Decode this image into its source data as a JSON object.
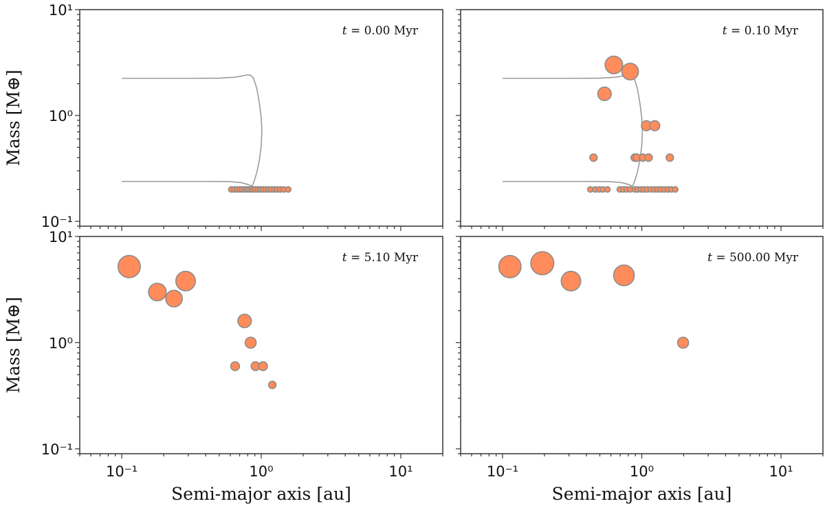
{
  "chart_data": {
    "type": "scatter",
    "layout": "2x2 grid, shared axes",
    "x_scale": "log",
    "y_scale": "log",
    "xlim": [
      0.05,
      20
    ],
    "ylim": [
      0.09,
      10
    ],
    "xlabel": "Semi-major axis [au]",
    "ylabel": "Mass [M⊕]",
    "xtick_labels": [
      "10⁻¹",
      "10⁰",
      "10¹"
    ],
    "xtick_values": [
      0.1,
      1,
      10
    ],
    "ytick_labels": [
      "10⁻¹",
      "10⁰",
      "10¹"
    ],
    "ytick_values": [
      0.1,
      1,
      10
    ],
    "grid": false,
    "colors": {
      "marker_fill": "#FF8C5A",
      "marker_edge": "#8C8C8C",
      "curve": "#9A9A9A",
      "frame": "#333333"
    },
    "marker_size_encodes": "mass",
    "curve": {
      "a": [
        0.1,
        0.3,
        0.5,
        0.65,
        0.75,
        0.8,
        0.84,
        0.88,
        0.93,
        0.97,
        1.0,
        1.01,
        1.0,
        0.97,
        0.93,
        0.89,
        0.86,
        0.8,
        0.72,
        0.6,
        0.4,
        0.1
      ],
      "m": [
        2.24,
        2.24,
        2.25,
        2.3,
        2.38,
        2.42,
        2.4,
        2.25,
        1.8,
        1.3,
        0.95,
        0.72,
        0.52,
        0.38,
        0.29,
        0.24,
        0.215,
        0.223,
        0.232,
        0.237,
        0.238,
        0.238
      ]
    },
    "panels": [
      {
        "time_prefix": "t",
        "time_label": " = 0.00 Myr",
        "show_curve": true,
        "points": {
          "a": [
            0.61,
            0.64,
            0.67,
            0.7,
            0.73,
            0.76,
            0.79,
            0.82,
            0.85,
            0.88,
            0.91,
            0.95,
            0.99,
            1.03,
            1.08,
            1.13,
            1.18,
            1.24,
            1.3,
            1.37,
            1.45,
            1.56
          ],
          "m": [
            0.2,
            0.2,
            0.2,
            0.2,
            0.2,
            0.2,
            0.2,
            0.2,
            0.2,
            0.2,
            0.2,
            0.2,
            0.2,
            0.2,
            0.2,
            0.2,
            0.2,
            0.2,
            0.2,
            0.2,
            0.2,
            0.2
          ]
        }
      },
      {
        "time_prefix": "t",
        "time_label": " = 0.10 Myr",
        "show_curve": true,
        "points": {
          "a": [
            0.63,
            0.825,
            0.54,
            1.08,
            1.24,
            0.45,
            0.89,
            0.92,
            1.02,
            1.12,
            1.59,
            0.427,
            0.463,
            0.495,
            0.524,
            0.567,
            0.695,
            0.736,
            0.779,
            0.825,
            0.893,
            0.934,
            0.989,
            1.03,
            1.09,
            1.16,
            1.23,
            1.3,
            1.37,
            1.45,
            1.54,
            1.63,
            1.74
          ],
          "m": [
            3.0,
            2.6,
            1.6,
            0.8,
            0.8,
            0.4,
            0.4,
            0.4,
            0.4,
            0.4,
            0.4,
            0.2,
            0.2,
            0.2,
            0.2,
            0.2,
            0.2,
            0.2,
            0.2,
            0.2,
            0.2,
            0.2,
            0.2,
            0.2,
            0.2,
            0.2,
            0.2,
            0.2,
            0.2,
            0.2,
            0.2,
            0.2,
            0.2
          ]
        }
      },
      {
        "time_prefix": "t",
        "time_label": " = 5.10 Myr",
        "show_curve": false,
        "points": {
          "a": [
            0.113,
            0.18,
            0.237,
            0.287,
            0.76,
            0.84,
            0.65,
            0.91,
            1.03,
            1.2
          ],
          "m": [
            5.2,
            3.0,
            2.6,
            3.8,
            1.6,
            1.0,
            0.6,
            0.6,
            0.6,
            0.4
          ]
        }
      },
      {
        "time_prefix": "t",
        "time_label": " = 500.00 Myr",
        "show_curve": false,
        "points": {
          "a": [
            0.113,
            0.193,
            0.31,
            0.745,
            1.98
          ],
          "m": [
            5.2,
            5.6,
            3.8,
            4.3,
            1.0
          ]
        }
      }
    ]
  }
}
